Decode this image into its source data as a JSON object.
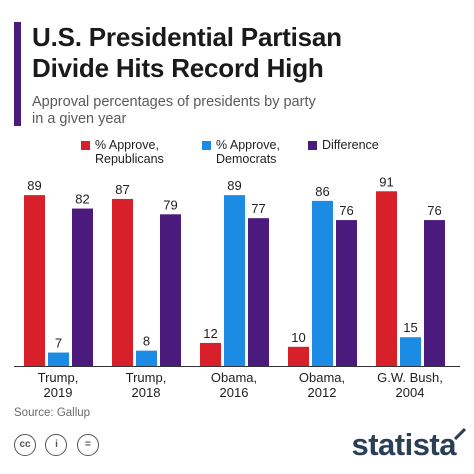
{
  "header": {
    "title_line1": "U.S. Presidential Partisan",
    "title_line2": "Divide Hits Record High",
    "subtitle_line1": "Approval percentages of presidents by party",
    "subtitle_line2": "in a given year"
  },
  "legend": [
    {
      "line1": "% Approve,",
      "line2": "Republicans",
      "color": "#d7202a"
    },
    {
      "line1": "% Approve,",
      "line2": "Democrats",
      "color": "#1c8be3"
    },
    {
      "line1": "Difference",
      "line2": "",
      "color": "#4a1a7c"
    }
  ],
  "chart_data": {
    "type": "bar",
    "categories": [
      [
        "Trump,",
        "2019"
      ],
      [
        "Trump,",
        "2018"
      ],
      [
        "Obama,",
        "2016"
      ],
      [
        "Obama,",
        "2012"
      ],
      [
        "G.W. Bush,",
        "2004"
      ]
    ],
    "series": [
      {
        "name": "% Approve, Republicans",
        "color": "#d7202a",
        "values": [
          89,
          87,
          12,
          10,
          91
        ]
      },
      {
        "name": "% Approve, Democrats",
        "color": "#1c8be3",
        "values": [
          7,
          8,
          89,
          86,
          15
        ]
      },
      {
        "name": "Difference",
        "color": "#4a1a7c",
        "values": [
          82,
          79,
          77,
          76,
          76
        ]
      }
    ],
    "ylim": [
      0,
      100
    ],
    "grid": false,
    "legend_position": "top",
    "data_labels": true
  },
  "footer": {
    "source": "Source: Gallup",
    "icons": [
      "cc-icon",
      "by-icon",
      "equals-icon"
    ],
    "icon_glyphs": [
      "cc",
      "i",
      "="
    ],
    "brand": "statista"
  }
}
